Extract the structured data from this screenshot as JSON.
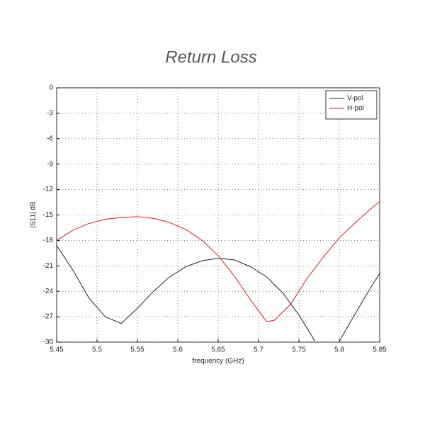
{
  "chart_data": {
    "type": "line",
    "title": "Return Loss",
    "x_label": "frequency (GHz)",
    "y_label": "|S11| dB",
    "xlim": [
      5.45,
      5.85
    ],
    "xticks": [
      5.45,
      5.5,
      5.55,
      5.6,
      5.65,
      5.7,
      5.75,
      5.8,
      5.85
    ],
    "ylim": [
      -30,
      0
    ],
    "yticks": [
      0,
      -3,
      -6,
      -9,
      -12,
      -15,
      -18,
      -21,
      -24,
      -27,
      -30
    ],
    "grid": true,
    "legend": "upper right",
    "series": [
      {
        "name": "V-pol",
        "color": "#1c2340",
        "x": [
          5.45,
          5.47,
          5.49,
          5.51,
          5.53,
          5.55,
          5.57,
          5.59,
          5.61,
          5.63,
          5.65,
          5.67,
          5.69,
          5.71,
          5.73,
          5.75,
          5.77,
          5.79,
          5.8,
          5.82,
          5.84,
          5.85
        ],
        "values": [
          -18.6,
          -21.5,
          -24.8,
          -27,
          -27.8,
          -26,
          -24,
          -22.3,
          -21.1,
          -20.4,
          -20.1,
          -20.3,
          -21.1,
          -22.3,
          -24.2,
          -26.8,
          -29.9,
          null,
          -29.9,
          -26.6,
          -23.4,
          -21.9
        ]
      },
      {
        "name": "H-pol",
        "color": "#d42020",
        "x": [
          5.45,
          5.47,
          5.49,
          5.51,
          5.53,
          5.55,
          5.57,
          5.59,
          5.61,
          5.63,
          5.65,
          5.67,
          5.69,
          5.71,
          5.72,
          5.74,
          5.76,
          5.78,
          5.8,
          5.82,
          5.84,
          5.85
        ],
        "values": [
          -18,
          -16.8,
          -16,
          -15.5,
          -15.3,
          -15.2,
          -15.4,
          -15.9,
          -16.7,
          -18,
          -19.8,
          -22.2,
          -25,
          -27.6,
          -27.4,
          -25.5,
          -22.5,
          -20,
          -17.7,
          -15.9,
          -14.2,
          -13.4
        ]
      }
    ]
  }
}
